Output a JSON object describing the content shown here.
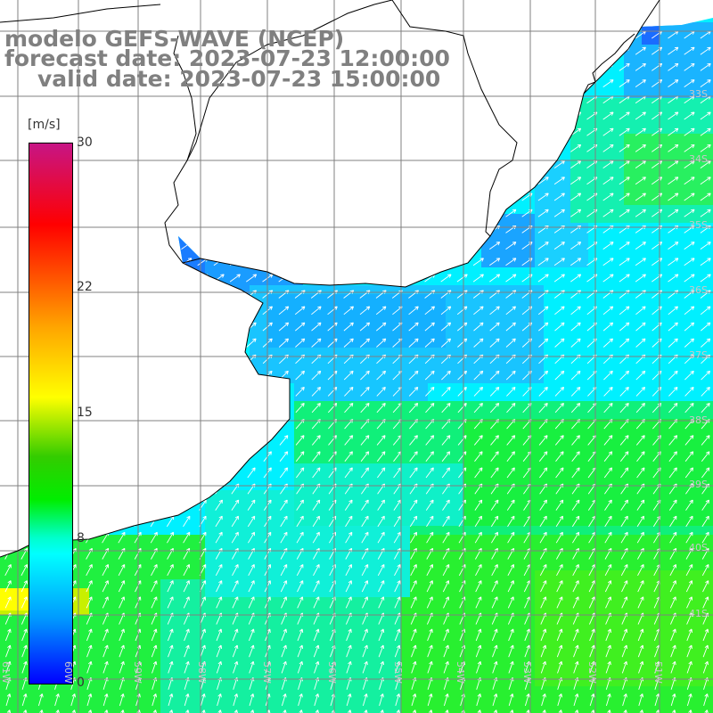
{
  "title": {
    "line1": "modelo GEFS-WAVE (NCEP)",
    "line2": "forecast date: 2023-07-23 12:00:00",
    "line3": "valid date: 2023-07-23 15:00:00"
  },
  "colorbar": {
    "unit": "[m/s]",
    "ticks": [
      "30",
      "22",
      "15",
      "8",
      "0"
    ],
    "tick_values": [
      30,
      22,
      15,
      8,
      0
    ],
    "colors": [
      "#0000ff",
      "#0099ff",
      "#00ffff",
      "#00ee00",
      "#33cc00",
      "#ffff00",
      "#ffa500",
      "#ff5500",
      "#ff0000",
      "#c71585"
    ]
  },
  "map": {
    "lat_labels": [
      "33S",
      "34S",
      "35S",
      "36S",
      "37S",
      "38S",
      "39S",
      "40S",
      "41S"
    ],
    "lon_labels": [
      "61W",
      "60W",
      "59W",
      "58W",
      "57W",
      "56W",
      "55W",
      "54W",
      "53W",
      "52W",
      "51W"
    ],
    "ocean_base_color": "#00ffff",
    "land_color": "#ffffff",
    "coast_color": "#000000",
    "grid_color": "#808080",
    "arrow_color": "#ffffff",
    "dominant_wind_direction": "northeast"
  }
}
